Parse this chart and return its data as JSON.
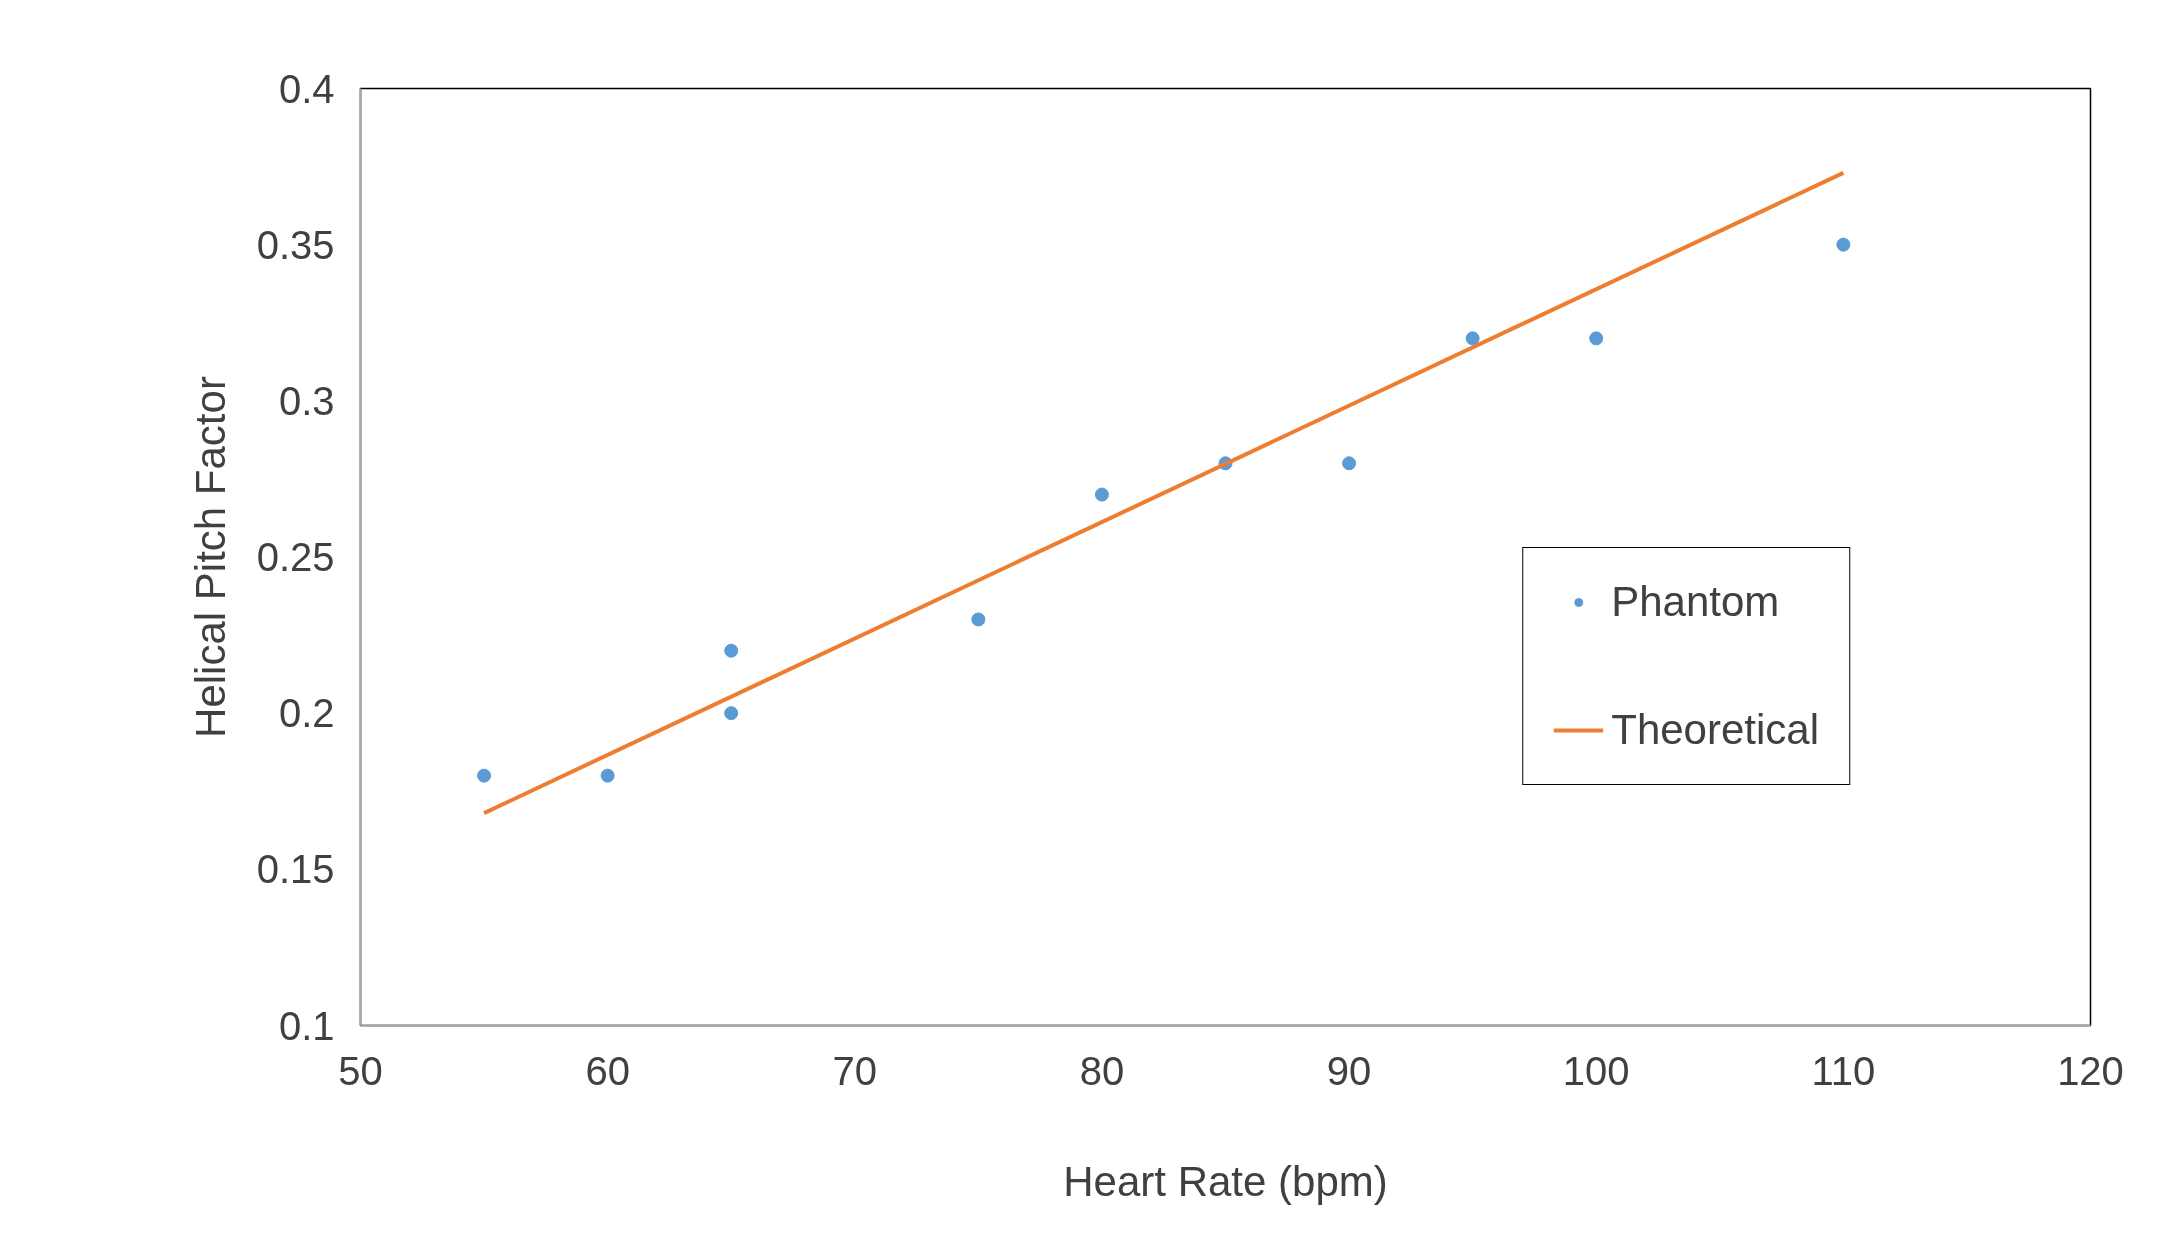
{
  "chart_data": {
    "type": "scatter",
    "xlabel": "Heart Rate (bpm)",
    "ylabel": "Helical Pitch Factor",
    "xlim": [
      50,
      120
    ],
    "xticks": [
      50,
      60,
      70,
      80,
      90,
      100,
      110,
      120
    ],
    "ylim": [
      0.1,
      0.4
    ],
    "yticks": [
      0.1,
      0.15,
      0.2,
      0.25,
      0.3,
      0.35,
      0.4
    ],
    "grid": false,
    "legend": "bottom right",
    "series": [
      {
        "name": "Phantom",
        "marker": "circle",
        "color": "#5b9bd5",
        "x": [
          55,
          60,
          65,
          65,
          75,
          80,
          85,
          90,
          95,
          100,
          110
        ],
        "values": [
          0.18,
          0.18,
          0.22,
          0.2,
          0.23,
          0.27,
          0.28,
          0.28,
          0.32,
          0.32,
          0.35
        ]
      },
      {
        "name": "Theoretical",
        "type": "line",
        "color": "#ed7d31",
        "x": [
          55,
          110
        ],
        "values": [
          0.168,
          0.373
        ],
        "line_style": "solid"
      }
    ]
  }
}
